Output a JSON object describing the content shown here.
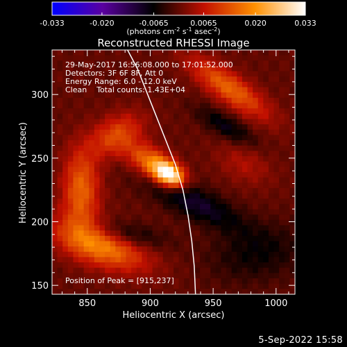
{
  "chart_data": {
    "type": "heatmap",
    "title": "Reconstructed RHESSI Image",
    "xlabel": "Heliocentric X (arcsec)",
    "ylabel": "Heliocentric Y (arcsec)",
    "xlim": [
      822,
      1015
    ],
    "ylim": [
      143,
      335
    ],
    "x_ticks": [
      850,
      900,
      950,
      1000
    ],
    "y_ticks": [
      150,
      200,
      250,
      300
    ],
    "colorbar": {
      "range": [
        -0.033,
        0.033
      ],
      "ticks": [
        "-0.033",
        "-0.020",
        "-0.0065",
        "0.0065",
        "0.020",
        "0.033"
      ],
      "label": "(photons cm<sup>-2</sup> s<sup>-1</sup> asec<sup>-2</sup>)",
      "stops": [
        "#0000ff",
        "#5a00a0",
        "#000000",
        "#c21000",
        "#ff9000",
        "#ffffff"
      ]
    },
    "annotations": [
      "29-May-2017 16:56:08.000 to 17:01:52.000",
      "Detectors: 3F 6F 8F, Att 0",
      "Energy Range: 6.0 - 12.0 keV",
      "Clean    Total counts: 1.43E+04"
    ],
    "peak_label": "Position of Peak = [915,237]",
    "peak": [
      915,
      237
    ],
    "limb_curve": [
      [
        882,
        335
      ],
      [
        890,
        320
      ],
      [
        898,
        300
      ],
      [
        906,
        280
      ],
      [
        914,
        260
      ],
      [
        920,
        245
      ],
      [
        926,
        225
      ],
      [
        930,
        205
      ],
      [
        933,
        185
      ],
      [
        935,
        165
      ],
      [
        936,
        143
      ]
    ],
    "sources": [
      {
        "x": 915,
        "y": 237,
        "sx": 9,
        "sy": 6,
        "rot": -30,
        "amp": 0.033
      },
      {
        "x": 900,
        "y": 247,
        "sx": 14,
        "sy": 8,
        "rot": -30,
        "amp": 0.016
      },
      {
        "x": 860,
        "y": 182,
        "sx": 26,
        "sy": 11,
        "rot": -20,
        "amp": 0.019
      },
      {
        "x": 845,
        "y": 225,
        "sx": 10,
        "sy": 22,
        "rot": 0,
        "amp": 0.015
      },
      {
        "x": 873,
        "y": 268,
        "sx": 16,
        "sy": 10,
        "rot": 30,
        "amp": 0.012
      },
      {
        "x": 963,
        "y": 305,
        "sx": 26,
        "sy": 8,
        "rot": -35,
        "amp": 0.015
      },
      {
        "x": 960,
        "y": 275,
        "sx": 18,
        "sy": 6,
        "rot": -30,
        "amp": -0.008
      },
      {
        "x": 935,
        "y": 215,
        "sx": 30,
        "sy": 9,
        "rot": -25,
        "amp": -0.01
      },
      {
        "x": 880,
        "y": 190,
        "sx": 22,
        "sy": 7,
        "rot": -10,
        "amp": -0.008
      },
      {
        "x": 985,
        "y": 175,
        "sx": 28,
        "sy": 16,
        "rot": 10,
        "amp": -0.006
      },
      {
        "x": 975,
        "y": 245,
        "sx": 16,
        "sy": 10,
        "rot": -25,
        "amp": 0.005
      }
    ]
  },
  "footer": {
    "date": "5-Sep-2022 15:58"
  }
}
